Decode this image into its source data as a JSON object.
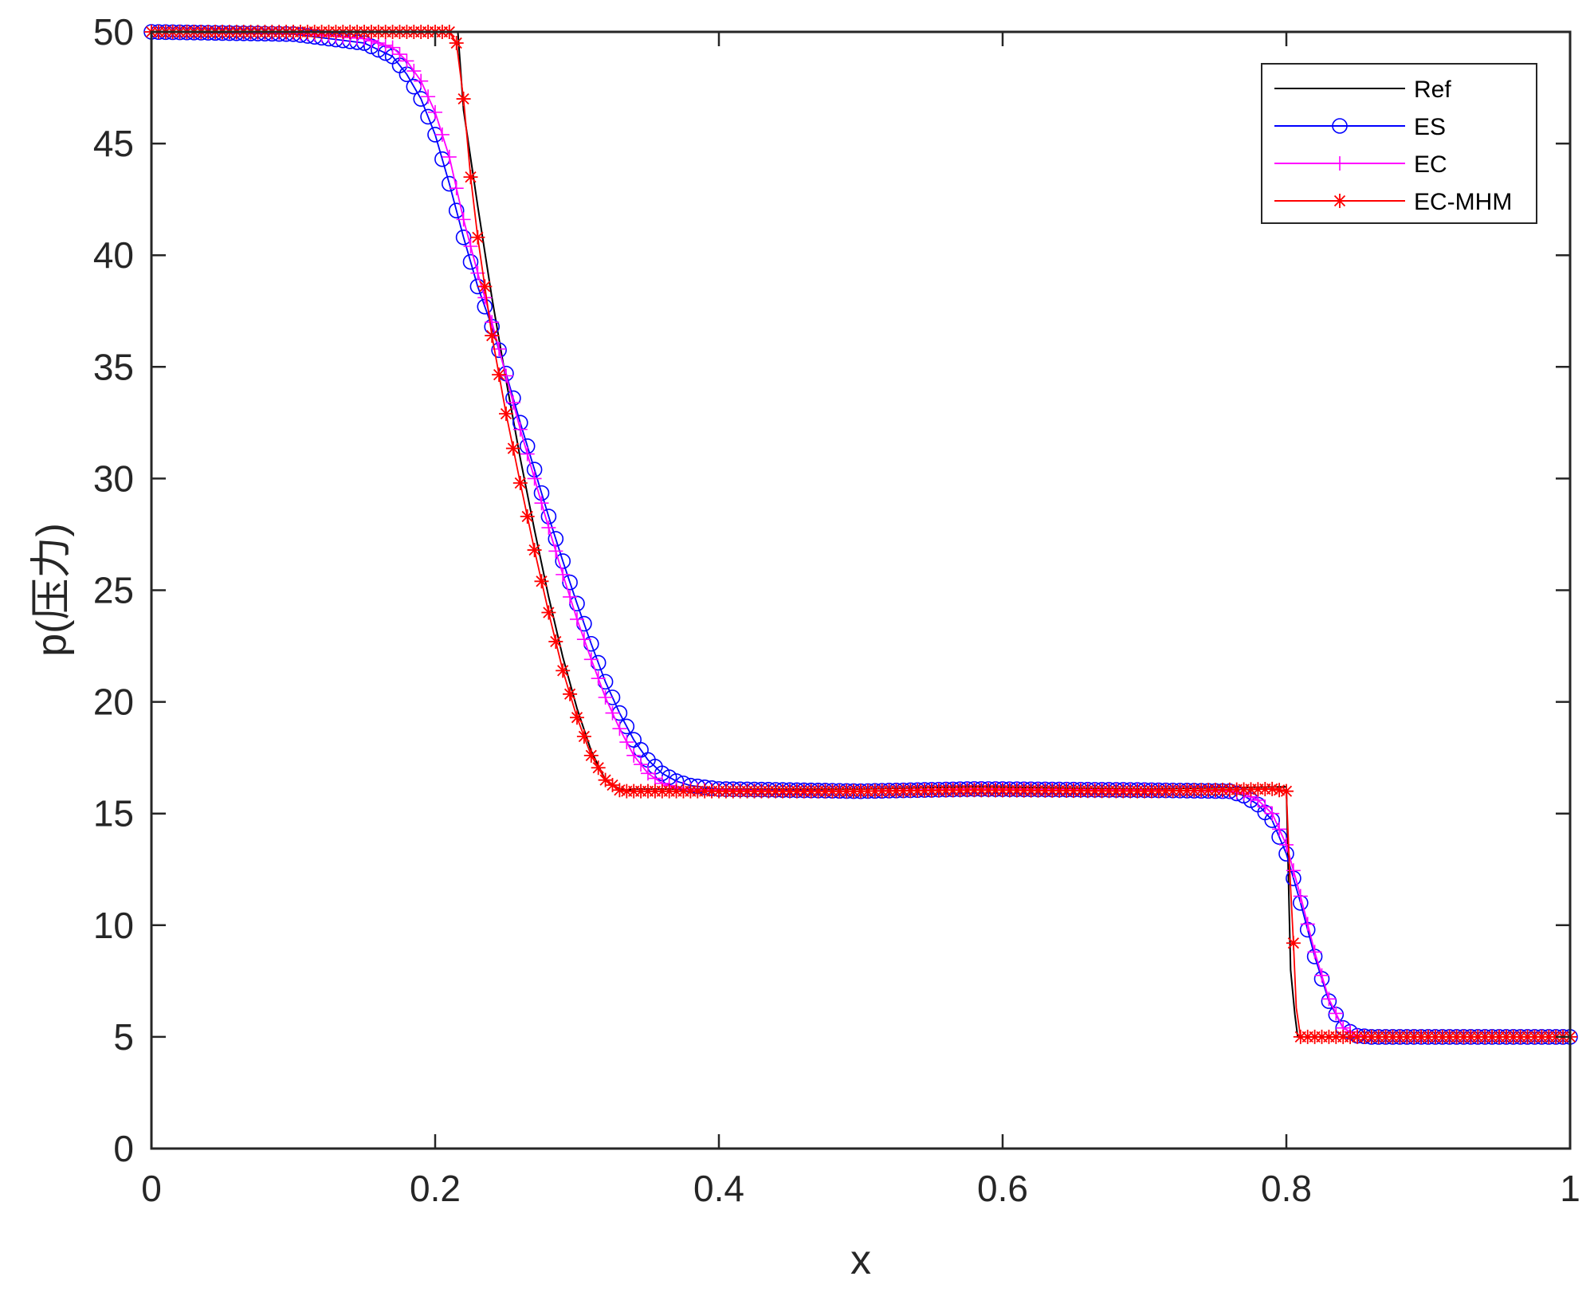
{
  "chart_data": {
    "type": "line",
    "xlabel": "x",
    "ylabel": "p(压力)",
    "xlim": [
      0,
      1
    ],
    "ylim": [
      0,
      50
    ],
    "xticks": [
      0,
      0.2,
      0.4,
      0.6,
      0.8,
      1
    ],
    "xtick_labels": [
      "0",
      "0.2",
      "0.4",
      "0.6",
      "0.8",
      "1"
    ],
    "yticks": [
      0,
      5,
      10,
      15,
      20,
      25,
      30,
      35,
      40,
      45,
      50
    ],
    "ytick_labels": [
      "0",
      "5",
      "10",
      "15",
      "20",
      "25",
      "30",
      "35",
      "40",
      "45",
      "50"
    ],
    "grid": false,
    "legend_position": "top-right",
    "series": [
      {
        "name": "Ref",
        "color": "#000000",
        "marker": "none",
        "x": [
          0,
          0.21,
          0.216,
          0.22,
          0.23,
          0.24,
          0.25,
          0.26,
          0.27,
          0.28,
          0.29,
          0.3,
          0.31,
          0.32,
          0.33,
          0.335,
          0.34,
          0.5,
          0.58,
          0.7,
          0.8,
          0.8015,
          0.803,
          0.806,
          0.808,
          0.81,
          1.0
        ],
        "y": [
          50,
          50,
          50,
          46.5,
          42.2,
          38.1,
          34.4,
          30.9,
          27.7,
          24.7,
          22.0,
          19.7,
          17.8,
          16.5,
          16.1,
          16.05,
          16.1,
          16.1,
          16.2,
          16.1,
          16.2,
          12,
          8,
          6,
          5,
          5,
          5
        ]
      },
      {
        "name": "ES",
        "color": "#0000ff",
        "marker": "circle",
        "x": [
          0,
          0.1,
          0.15,
          0.17,
          0.18,
          0.19,
          0.2,
          0.21,
          0.22,
          0.23,
          0.24,
          0.25,
          0.26,
          0.27,
          0.28,
          0.29,
          0.3,
          0.31,
          0.32,
          0.33,
          0.34,
          0.35,
          0.36,
          0.37,
          0.38,
          0.4,
          0.45,
          0.5,
          0.58,
          0.7,
          0.76,
          0.77,
          0.78,
          0.79,
          0.8,
          0.81,
          0.82,
          0.83,
          0.84,
          0.85,
          0.86,
          0.9,
          1.0
        ],
        "y": [
          50,
          49.9,
          49.5,
          48.9,
          48.1,
          47.0,
          45.4,
          43.2,
          40.8,
          38.6,
          36.8,
          34.7,
          32.5,
          30.4,
          28.3,
          26.3,
          24.4,
          22.6,
          20.9,
          19.5,
          18.3,
          17.4,
          16.8,
          16.45,
          16.25,
          16.1,
          16.05,
          16.0,
          16.1,
          16.05,
          16.0,
          15.8,
          15.4,
          14.7,
          13.2,
          11.0,
          8.6,
          6.6,
          5.4,
          5.05,
          5.0,
          5.0,
          5.0
        ]
      },
      {
        "name": "EC",
        "color": "#ff00ff",
        "marker": "plus",
        "x": [
          0,
          0.1,
          0.15,
          0.17,
          0.18,
          0.19,
          0.2,
          0.21,
          0.22,
          0.23,
          0.24,
          0.25,
          0.26,
          0.27,
          0.28,
          0.29,
          0.3,
          0.31,
          0.32,
          0.33,
          0.34,
          0.35,
          0.36,
          0.37,
          0.38,
          0.4,
          0.45,
          0.5,
          0.58,
          0.7,
          0.76,
          0.77,
          0.78,
          0.79,
          0.8,
          0.81,
          0.82,
          0.83,
          0.84,
          0.85,
          0.86,
          0.9,
          1.0
        ],
        "y": [
          50,
          49.95,
          49.7,
          49.3,
          48.7,
          47.8,
          46.4,
          44.4,
          41.6,
          39.2,
          37.0,
          34.6,
          32.2,
          30.0,
          27.8,
          25.7,
          23.7,
          21.9,
          20.2,
          18.8,
          17.6,
          16.8,
          16.35,
          16.15,
          16.08,
          16.05,
          16.0,
          16.0,
          16.1,
          16.05,
          16.0,
          15.9,
          15.6,
          15.0,
          13.6,
          11.3,
          8.8,
          6.7,
          5.4,
          5.05,
          5.0,
          5.0,
          5.0
        ]
      },
      {
        "name": "EC-MHM",
        "color": "#ff0000",
        "marker": "asterisk",
        "x": [
          0,
          0.1,
          0.2,
          0.21,
          0.215,
          0.22,
          0.225,
          0.23,
          0.24,
          0.25,
          0.26,
          0.27,
          0.28,
          0.29,
          0.3,
          0.31,
          0.32,
          0.33,
          0.335,
          0.34,
          0.4,
          0.5,
          0.58,
          0.7,
          0.79,
          0.8,
          0.802,
          0.805,
          0.807,
          0.81,
          0.82,
          0.9,
          1.0
        ],
        "y": [
          50,
          50,
          50,
          50,
          49.5,
          47.0,
          43.5,
          40.8,
          36.4,
          32.9,
          29.8,
          26.8,
          24.0,
          21.4,
          19.3,
          17.6,
          16.5,
          16.05,
          16.0,
          16.0,
          16.0,
          16.0,
          16.05,
          16.0,
          16.1,
          16.0,
          12.9,
          9.2,
          6.3,
          5.0,
          5.0,
          5.0,
          5.0
        ]
      }
    ]
  }
}
